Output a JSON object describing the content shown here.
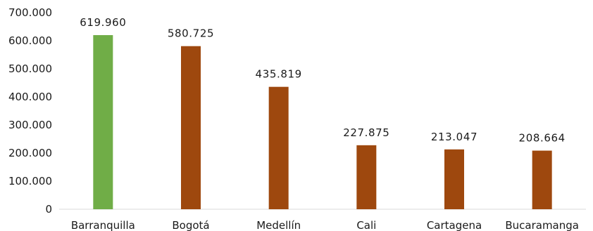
{
  "chart_data": {
    "type": "bar",
    "title": "",
    "xlabel": "",
    "ylabel": "",
    "categories": [
      "Barranquilla",
      "Bogotá",
      "Medellín",
      "Cali",
      "Cartagena",
      "Bucaramanga"
    ],
    "values": [
      619960,
      580725,
      435819,
      227875,
      213047,
      208664
    ],
    "value_labels": [
      "619.960",
      "580.725",
      "435.819",
      "227.875",
      "213.047",
      "208.664"
    ],
    "ylim": [
      0,
      700000
    ],
    "y_ticks": [
      0,
      100000,
      200000,
      300000,
      400000,
      500000,
      600000,
      700000
    ],
    "y_tick_labels": [
      "0",
      "100.000",
      "200.000",
      "300.000",
      "400.000",
      "500.000",
      "600.000",
      "700.000"
    ],
    "grid": false,
    "legend": "none",
    "highlight_index": 0,
    "colors": {
      "highlight": "#70ad47",
      "default": "#9e480e",
      "axis": "#d9d9d9"
    }
  }
}
